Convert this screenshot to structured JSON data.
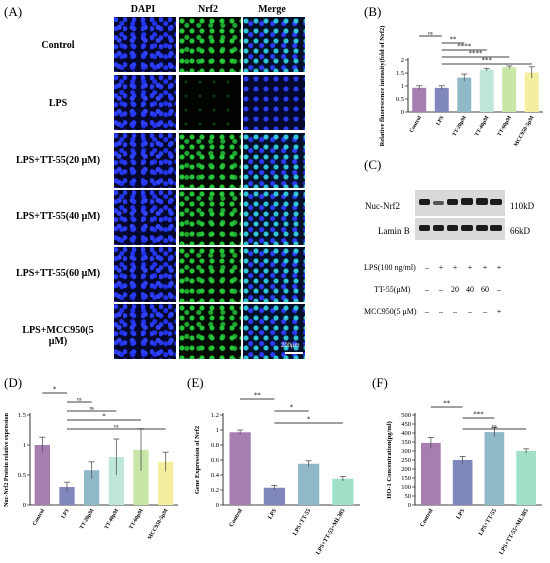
{
  "panel_labels": {
    "a": "(A)",
    "b": "(B)",
    "c": "(C)",
    "d": "(D)",
    "e": "(E)",
    "f": "(F)"
  },
  "panel_a": {
    "columns": [
      "DAPI",
      "Nrf2",
      "Merge"
    ],
    "rows": [
      "Control",
      "LPS",
      "LPS+TT-55(20 μM)",
      "LPS+TT-55(40 μM)",
      "LPS+TT-55(60 μM)",
      "LPS+MCC950(5 μM)"
    ],
    "scale_bar": "200μm"
  },
  "panel_c": {
    "bands": [
      {
        "name": "Nuc-Nrf2",
        "kd": "110kD"
      },
      {
        "name": "Lamin B",
        "kd": "66kD"
      }
    ],
    "conditions": [
      {
        "label": "LPS(100 ng/ml)",
        "values": [
          "–",
          "+",
          "+",
          "+",
          "+",
          "+"
        ]
      },
      {
        "label": "TT-55(μM)",
        "values": [
          "–",
          "–",
          "20",
          "40",
          "60",
          "–"
        ]
      },
      {
        "label": "MCC950(5 μM)",
        "values": [
          "–",
          "–",
          "–",
          "–",
          "–",
          "+"
        ]
      }
    ]
  },
  "colors": {
    "purple": "#a67fb0",
    "blue": "#7f87bd",
    "teal": "#8fb9c7",
    "mint": "#bfe7d9",
    "green": "#c8e6a8",
    "yellow": "#f3ef9e",
    "f_green": "#9fe0c6"
  },
  "chart_data": [
    {
      "id": "B",
      "type": "bar",
      "categories": [
        "Control",
        "LPS",
        "TT-20μM",
        "TT-40μM",
        "TT-60μM",
        "MCC950-5μM"
      ],
      "values": [
        0.93,
        0.93,
        1.32,
        1.63,
        1.72,
        1.52
      ],
      "errors": [
        0.08,
        0.08,
        0.14,
        0.05,
        0.05,
        0.22
      ],
      "colors": [
        "#a67fb0",
        "#7f87bd",
        "#8fb9c7",
        "#bfe7d9",
        "#c8e6a8",
        "#f3ef9e"
      ],
      "ylabel": "Relative fluorescence intensity(fold of Nrf2)",
      "ylim": [
        0,
        2.0
      ],
      "yticks": [
        0.0,
        0.5,
        1.0,
        1.5,
        2.0
      ],
      "sig": [
        {
          "from": 0,
          "to": 1,
          "label": "ns"
        },
        {
          "from": 1,
          "to": 2,
          "label": "**"
        },
        {
          "from": 1,
          "to": 3,
          "label": "****"
        },
        {
          "from": 1,
          "to": 4,
          "label": "****"
        },
        {
          "from": 1,
          "to": 5,
          "label": "***"
        }
      ]
    },
    {
      "id": "D",
      "type": "bar",
      "categories": [
        "Control",
        "LPS",
        "TT-20μM",
        "TT-40μM",
        "TT-60μM",
        "MCC950-5μM"
      ],
      "values": [
        1.0,
        0.3,
        0.58,
        0.8,
        0.92,
        0.72
      ],
      "errors": [
        0.13,
        0.08,
        0.14,
        0.3,
        0.35,
        0.16
      ],
      "colors": [
        "#a67fb0",
        "#7f87bd",
        "#8fb9c7",
        "#bfe7d9",
        "#c8e6a8",
        "#f3ef9e"
      ],
      "ylabel": "Nuc-Nrf2 Protein relative expression",
      "ylim": [
        0.0,
        1.5
      ],
      "yticks": [
        0.0,
        0.5,
        1.0,
        1.5
      ],
      "sig": [
        {
          "from": 0,
          "to": 1,
          "label": "*"
        },
        {
          "from": 1,
          "to": 2,
          "label": "ns"
        },
        {
          "from": 1,
          "to": 3,
          "label": "ns"
        },
        {
          "from": 1,
          "to": 4,
          "label": "*"
        },
        {
          "from": 1,
          "to": 5,
          "label": "ns"
        }
      ]
    },
    {
      "id": "E",
      "type": "bar",
      "categories": [
        "Control",
        "LPS",
        "LPS+TT-55",
        "LPS+TT-55+ML385"
      ],
      "values": [
        0.97,
        0.23,
        0.55,
        0.35
      ],
      "errors": [
        0.03,
        0.03,
        0.04,
        0.03
      ],
      "colors": [
        "#a67fb0",
        "#7f87bd",
        "#8fb9c7",
        "#9fe0c6"
      ],
      "ylabel": "Gene Expression of Nrf2",
      "ylim": [
        0.0,
        1.2
      ],
      "yticks": [
        0.0,
        0.2,
        0.4,
        0.6,
        0.8,
        1.0,
        1.2
      ],
      "sig": [
        {
          "from": 0,
          "to": 1,
          "label": "**"
        },
        {
          "from": 1,
          "to": 2,
          "label": "*"
        },
        {
          "from": 1,
          "to": 3,
          "label": "*"
        }
      ]
    },
    {
      "id": "F",
      "type": "bar",
      "categories": [
        "Control",
        "LPS",
        "LPS+TT-55",
        "LPS+TT-55+ML385"
      ],
      "values": [
        345,
        250,
        405,
        300
      ],
      "errors": [
        30,
        20,
        25,
        12
      ],
      "colors": [
        "#a67fb0",
        "#7f87bd",
        "#8fb9c7",
        "#9fe0c6"
      ],
      "ylabel": "HO-1 Concentration(pg/ml)",
      "ylim": [
        0,
        500
      ],
      "yticks": [
        0,
        50,
        100,
        150,
        200,
        250,
        300,
        350,
        400,
        450,
        500
      ],
      "sig": [
        {
          "from": 0,
          "to": 1,
          "label": "**"
        },
        {
          "from": 1,
          "to": 2,
          "label": "***"
        },
        {
          "from": 1,
          "to": 3,
          "label": "ns"
        }
      ]
    }
  ]
}
